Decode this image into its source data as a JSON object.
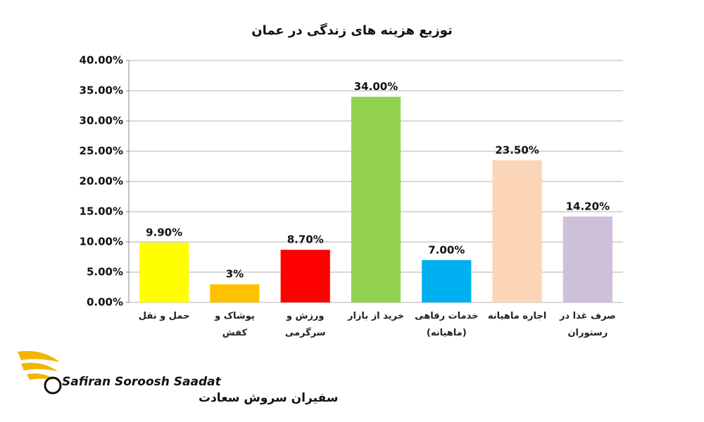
{
  "chart_data": {
    "type": "bar",
    "title": "توزیع هزینه های زندگی در عمان",
    "categories": [
      "حمل و نقل",
      "پوشاک و کفش",
      "ورزش و سرگرمی",
      "خرید از بازار",
      "خدمات رفاهی (ماهیانه)",
      "اجاره ماهیانه",
      "صرف غذا در رستوران"
    ],
    "values": [
      9.9,
      3,
      8.7,
      34,
      7,
      23.5,
      14.2
    ],
    "value_labels": [
      "9.90%",
      "3%",
      "8.70%",
      "34.00%",
      "7.00%",
      "23.50%",
      "14.20%"
    ],
    "colors": [
      "#ffff00",
      "#ffc000",
      "#ff0000",
      "#92d050",
      "#00b0f0",
      "#fbd5b5",
      "#ccc0da"
    ],
    "ylim": [
      0,
      40
    ],
    "yticks": [
      {
        "value": 0,
        "label": "0.00%"
      },
      {
        "value": 5,
        "label": "5.00%"
      },
      {
        "value": 10,
        "label": "10.00%"
      },
      {
        "value": 15,
        "label": "15.00%"
      },
      {
        "value": 20,
        "label": "20.00%"
      },
      {
        "value": 25,
        "label": "25.00%"
      },
      {
        "value": 30,
        "label": "30.00%"
      },
      {
        "value": 35,
        "label": "35.00%"
      },
      {
        "value": 40,
        "label": "40.00%"
      }
    ],
    "grid": true
  },
  "logo": {
    "latin": "Safiran Soroosh Saadat",
    "persian": "سفیران سروش سعادت"
  }
}
